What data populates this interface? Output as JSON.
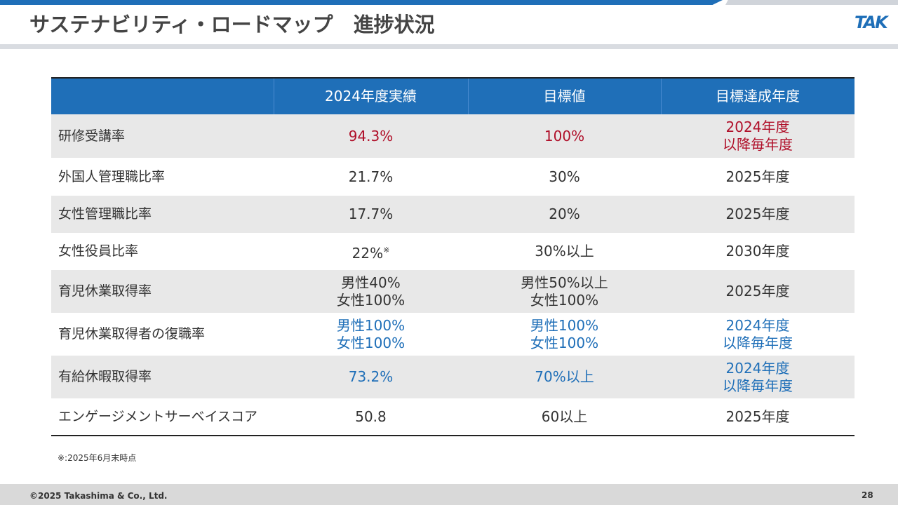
{
  "header": {
    "title": "サステナビリティ・ロードマップ　進捗状況",
    "logo": "TAK"
  },
  "table": {
    "columns": [
      "",
      "2024年度実績",
      "目標値",
      "目標達成年度"
    ],
    "colors": {
      "red": "#b0102a",
      "blue": "#1f6fb8",
      "default": "#333333"
    },
    "rows": [
      {
        "label": "研修受講率",
        "cells": [
          {
            "lines": [
              "94.3%"
            ],
            "color": "red"
          },
          {
            "lines": [
              "100%"
            ],
            "color": "red"
          },
          {
            "lines": [
              "2024年度",
              "以降毎年度"
            ],
            "color": "red"
          }
        ]
      },
      {
        "label": "外国人管理職比率",
        "cells": [
          {
            "lines": [
              "21.7%"
            ]
          },
          {
            "lines": [
              "30%"
            ]
          },
          {
            "lines": [
              "2025年度"
            ]
          }
        ]
      },
      {
        "label": "女性管理職比率",
        "cells": [
          {
            "lines": [
              "17.7%"
            ]
          },
          {
            "lines": [
              "20%"
            ]
          },
          {
            "lines": [
              "2025年度"
            ]
          }
        ]
      },
      {
        "label": "女性役員比率",
        "cells": [
          {
            "lines": [
              "22%"
            ],
            "mark": "※"
          },
          {
            "lines": [
              "30%以上"
            ]
          },
          {
            "lines": [
              "2030年度"
            ]
          }
        ]
      },
      {
        "label": "育児休業取得率",
        "cells": [
          {
            "lines": [
              "男性40%",
              "女性100%"
            ]
          },
          {
            "lines": [
              "男性50%以上",
              "女性100%"
            ]
          },
          {
            "lines": [
              "2025年度"
            ]
          }
        ]
      },
      {
        "label": "育児休業取得者の復職率",
        "cells": [
          {
            "lines": [
              "男性100%",
              "女性100%"
            ],
            "color": "blue"
          },
          {
            "lines": [
              "男性100%",
              "女性100%"
            ],
            "color": "blue"
          },
          {
            "lines": [
              "2024年度",
              "以降毎年度"
            ],
            "color": "blue"
          }
        ]
      },
      {
        "label": "有給休暇取得率",
        "cells": [
          {
            "lines": [
              "73.2%"
            ],
            "color": "blue"
          },
          {
            "lines": [
              "70%以上"
            ],
            "color": "blue"
          },
          {
            "lines": [
              "2024年度",
              "以降毎年度"
            ],
            "color": "blue"
          }
        ]
      },
      {
        "label": "エンゲージメントサーベイスコア",
        "cells": [
          {
            "lines": [
              "50.8"
            ]
          },
          {
            "lines": [
              "60以上"
            ]
          },
          {
            "lines": [
              "2025年度"
            ]
          }
        ]
      }
    ]
  },
  "footnote": "※:2025年6月末時点",
  "footer": {
    "copyright": "©2025 Takashima & Co., Ltd.",
    "page": "28"
  }
}
